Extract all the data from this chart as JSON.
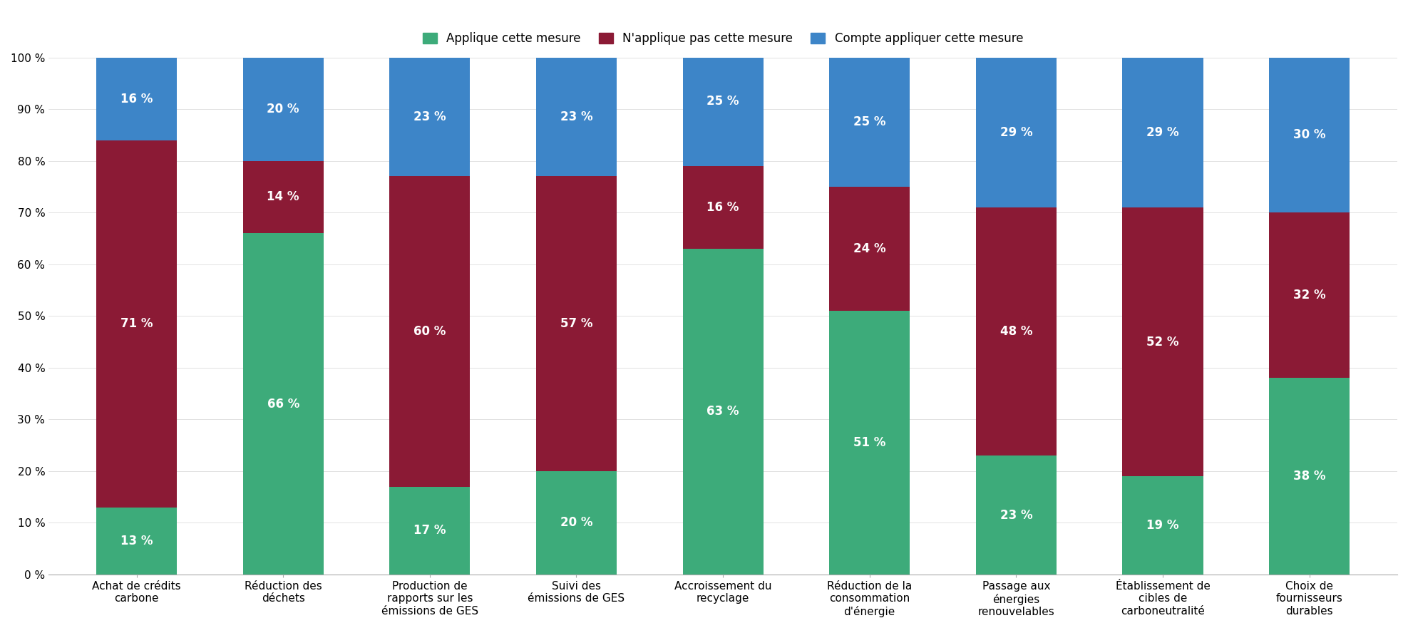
{
  "categories": [
    "Achat de crédits\ncarbone",
    "Réduction des\ndéchets",
    "Production de\nrapports sur les\némissions de GES",
    "Suivi des\némissions de GES",
    "Accroissement du\nrecyclage",
    "Réduction de la\nconsommation\nd'énergie",
    "Passage aux\nénergies\nrenouvelables",
    "Établissement de\ncibles de\ncarboneutralité",
    "Choix de\nfournisseurs\ndurables"
  ],
  "green_values": [
    13,
    66,
    17,
    20,
    63,
    51,
    23,
    19,
    38
  ],
  "red_values": [
    71,
    14,
    60,
    57,
    16,
    24,
    48,
    52,
    32
  ],
  "blue_values": [
    16,
    20,
    23,
    23,
    25,
    25,
    29,
    29,
    30
  ],
  "green_color": "#3dab7a",
  "red_color": "#8b1a35",
  "blue_color": "#3d85c8",
  "legend_labels": [
    "Applique cette mesure",
    "N'applique pas cette mesure",
    "Compte appliquer cette mesure"
  ],
  "title": "",
  "ylabel": "",
  "ylim": [
    0,
    100
  ],
  "bar_width": 0.55,
  "background_color": "#ffffff",
  "font_color_bar": "#ffffff",
  "font_size_bar": 12,
  "font_size_tick": 11,
  "font_size_legend": 12
}
